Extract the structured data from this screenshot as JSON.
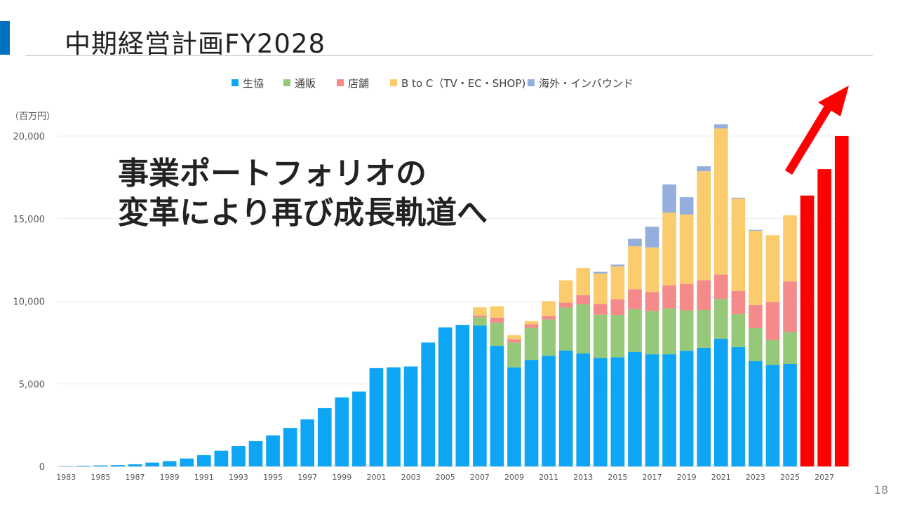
{
  "header": {
    "title": "中期経営計画FY2028"
  },
  "message": {
    "line1": "事業ポートフォリオの",
    "line2": "変革により再び成長軌道へ"
  },
  "page_number": "18",
  "colors": {
    "accent": "#0070c0",
    "生協": "#0ea5f4",
    "通販": "#96c87a",
    "店舗": "#f58a8a",
    "B to C（TV・EC・SHOP)": "#fbcc6e",
    "海外・インバウンド": "#94aedd",
    "plan": "#ff0000"
  },
  "chart_data": {
    "type": "bar",
    "stacked": true,
    "unit_label": "（百万円）",
    "ylim": [
      0,
      20000
    ],
    "yticks": [
      "0",
      "5,000",
      "10,000",
      "15,000",
      "20,000"
    ],
    "ytick_values": [
      0,
      5000,
      10000,
      15000,
      20000
    ],
    "grid": true,
    "legend_position": "top",
    "categories": [
      "1983",
      "1984",
      "1985",
      "1986",
      "1987",
      "1988",
      "1989",
      "1990",
      "1991",
      "1992",
      "1993",
      "1994",
      "1995",
      "1996",
      "1997",
      "1998",
      "1999",
      "2000",
      "2001",
      "2002",
      "2003",
      "2004",
      "2005",
      "2006",
      "2007",
      "2008",
      "2009",
      "2010",
      "2011",
      "2012",
      "2013",
      "2014",
      "2015",
      "2016",
      "2017",
      "2018",
      "2019",
      "2020",
      "2021",
      "2022",
      "2023",
      "2024",
      "2025",
      "2026",
      "2027",
      "2028"
    ],
    "xtick_labels": [
      "1983",
      "",
      "1985",
      "",
      "1987",
      "",
      "1989",
      "",
      "1991",
      "",
      "1993",
      "",
      "1995",
      "",
      "1997",
      "",
      "1999",
      "",
      "2001",
      "",
      "2003",
      "",
      "2005",
      "",
      "2007",
      "",
      "2009",
      "",
      "2011",
      "",
      "2013",
      "",
      "2015",
      "",
      "2017",
      "",
      "2019",
      "",
      "2021",
      "",
      "2023",
      "",
      "2025",
      "",
      "2027",
      ""
    ],
    "series": [
      {
        "name": "生協",
        "values": [
          20,
          40,
          60,
          80,
          130,
          230,
          320,
          480,
          680,
          950,
          1230,
          1530,
          1880,
          2330,
          2850,
          3530,
          4180,
          4530,
          5950,
          6000,
          6050,
          7500,
          8420,
          8570,
          8530,
          7300,
          6000,
          6450,
          6700,
          7020,
          6840,
          6560,
          6610,
          6930,
          6790,
          6790,
          7000,
          7180,
          7730,
          7220,
          6370,
          6150,
          6200,
          0,
          0,
          0
        ]
      },
      {
        "name": "通販",
        "values": [
          0,
          0,
          0,
          0,
          0,
          0,
          0,
          0,
          0,
          0,
          0,
          0,
          0,
          0,
          0,
          0,
          0,
          0,
          0,
          0,
          0,
          0,
          0,
          0,
          500,
          1400,
          1500,
          1950,
          2200,
          2600,
          2980,
          2620,
          2560,
          2600,
          2620,
          2780,
          2450,
          2290,
          2410,
          2000,
          2000,
          1500,
          1950,
          0,
          0,
          0
        ]
      },
      {
        "name": "店舗",
        "values": [
          0,
          0,
          0,
          0,
          0,
          0,
          0,
          0,
          0,
          0,
          0,
          0,
          0,
          0,
          0,
          0,
          0,
          0,
          0,
          0,
          0,
          0,
          0,
          0,
          100,
          300,
          200,
          200,
          200,
          300,
          550,
          650,
          950,
          1200,
          1150,
          1400,
          1600,
          1800,
          1470,
          1400,
          1400,
          2300,
          3050,
          0,
          0,
          0
        ]
      },
      {
        "name": "B to C（TV・EC・SHOP)",
        "values": [
          0,
          0,
          0,
          0,
          0,
          0,
          0,
          0,
          0,
          0,
          0,
          0,
          0,
          0,
          0,
          0,
          0,
          0,
          0,
          0,
          0,
          0,
          0,
          0,
          500,
          700,
          250,
          200,
          900,
          1350,
          1650,
          1850,
          2000,
          2600,
          2700,
          4400,
          4200,
          6600,
          8850,
          5600,
          4500,
          4050,
          4000,
          0,
          0,
          0
        ]
      },
      {
        "name": "海外・インバウンド",
        "values": [
          0,
          0,
          0,
          0,
          0,
          0,
          0,
          0,
          0,
          0,
          0,
          0,
          0,
          0,
          0,
          0,
          0,
          0,
          0,
          0,
          0,
          0,
          0,
          0,
          0,
          0,
          0,
          0,
          0,
          0,
          0,
          100,
          100,
          450,
          1250,
          1700,
          1050,
          300,
          250,
          50,
          50,
          0,
          0,
          0,
          0,
          0
        ]
      },
      {
        "name": "",
        "values": [
          0,
          0,
          0,
          0,
          0,
          0,
          0,
          0,
          0,
          0,
          0,
          0,
          0,
          0,
          0,
          0,
          0,
          0,
          0,
          0,
          0,
          0,
          0,
          0,
          0,
          0,
          0,
          0,
          0,
          0,
          0,
          0,
          0,
          0,
          0,
          0,
          0,
          0,
          0,
          0,
          0,
          0,
          0,
          16400,
          18000,
          20000
        ]
      }
    ],
    "legend": [
      "生協",
      "通販",
      "店舗",
      "B to C（TV・EC・SHOP)",
      "海外・インバウンド"
    ],
    "annotation": "upward-arrow"
  }
}
